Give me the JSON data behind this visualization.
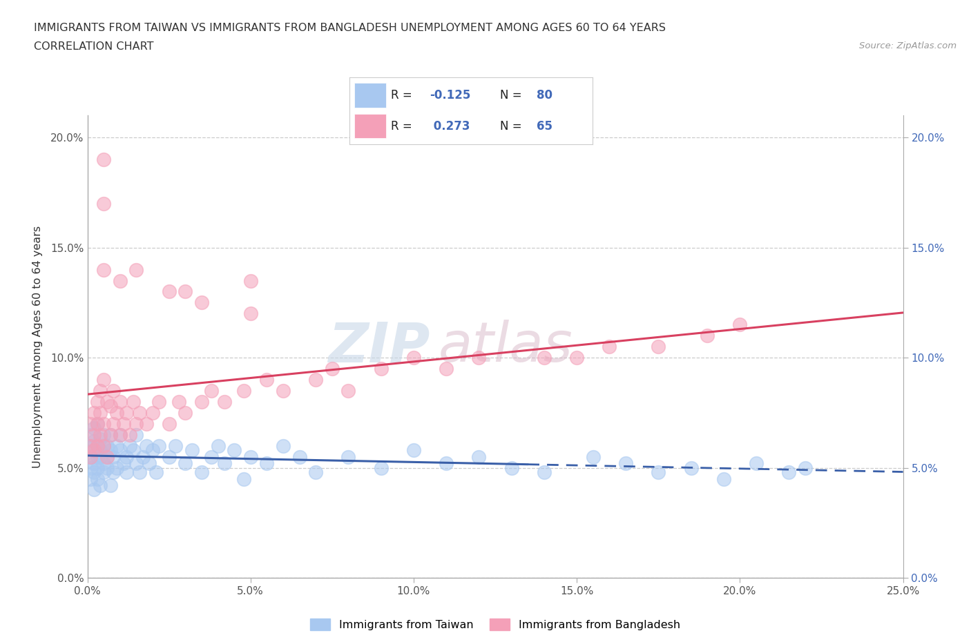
{
  "title_line1": "IMMIGRANTS FROM TAIWAN VS IMMIGRANTS FROM BANGLADESH UNEMPLOYMENT AMONG AGES 60 TO 64 YEARS",
  "title_line2": "CORRELATION CHART",
  "source": "Source: ZipAtlas.com",
  "ylabel": "Unemployment Among Ages 60 to 64 years",
  "watermark_zip": "ZIP",
  "watermark_atlas": "atlas",
  "taiwan_R": -0.125,
  "taiwan_N": 80,
  "bangladesh_R": 0.273,
  "bangladesh_N": 65,
  "taiwan_color": "#a8c8f0",
  "bangladesh_color": "#f4a0b8",
  "taiwan_line_color": "#3a5fa8",
  "bangladesh_line_color": "#d84060",
  "xlim": [
    0.0,
    0.25
  ],
  "ylim": [
    0.0,
    0.21
  ],
  "xticks": [
    0.0,
    0.05,
    0.1,
    0.15,
    0.2,
    0.25
  ],
  "xtick_labels": [
    "0.0%",
    "5.0%",
    "10.0%",
    "15.0%",
    "20.0%",
    "25.0%"
  ],
  "yticks": [
    0.0,
    0.05,
    0.1,
    0.15,
    0.2
  ],
  "ytick_labels": [
    "0.0%",
    "5.0%",
    "10.0%",
    "15.0%",
    "20.0%"
  ],
  "taiwan_x": [
    0.001,
    0.001,
    0.001,
    0.001,
    0.001,
    0.002,
    0.002,
    0.002,
    0.002,
    0.002,
    0.002,
    0.003,
    0.003,
    0.003,
    0.003,
    0.003,
    0.004,
    0.004,
    0.004,
    0.004,
    0.005,
    0.005,
    0.005,
    0.005,
    0.006,
    0.006,
    0.006,
    0.007,
    0.007,
    0.007,
    0.008,
    0.008,
    0.009,
    0.009,
    0.01,
    0.01,
    0.011,
    0.012,
    0.012,
    0.013,
    0.014,
    0.015,
    0.015,
    0.016,
    0.017,
    0.018,
    0.019,
    0.02,
    0.021,
    0.022,
    0.025,
    0.027,
    0.03,
    0.032,
    0.035,
    0.038,
    0.04,
    0.042,
    0.045,
    0.048,
    0.05,
    0.055,
    0.06,
    0.065,
    0.07,
    0.08,
    0.09,
    0.1,
    0.11,
    0.12,
    0.13,
    0.14,
    0.155,
    0.165,
    0.175,
    0.185,
    0.195,
    0.205,
    0.215,
    0.22
  ],
  "taiwan_y": [
    0.06,
    0.055,
    0.065,
    0.05,
    0.045,
    0.058,
    0.062,
    0.048,
    0.052,
    0.04,
    0.068,
    0.055,
    0.06,
    0.045,
    0.07,
    0.05,
    0.058,
    0.063,
    0.042,
    0.055,
    0.06,
    0.048,
    0.052,
    0.065,
    0.055,
    0.05,
    0.06,
    0.058,
    0.042,
    0.065,
    0.055,
    0.048,
    0.06,
    0.05,
    0.058,
    0.065,
    0.052,
    0.055,
    0.048,
    0.06,
    0.058,
    0.052,
    0.065,
    0.048,
    0.055,
    0.06,
    0.052,
    0.058,
    0.048,
    0.06,
    0.055,
    0.06,
    0.052,
    0.058,
    0.048,
    0.055,
    0.06,
    0.052,
    0.058,
    0.045,
    0.055,
    0.052,
    0.06,
    0.055,
    0.048,
    0.055,
    0.05,
    0.058,
    0.052,
    0.055,
    0.05,
    0.048,
    0.055,
    0.052,
    0.048,
    0.05,
    0.045,
    0.052,
    0.048,
    0.05
  ],
  "bangladesh_x": [
    0.001,
    0.001,
    0.001,
    0.002,
    0.002,
    0.002,
    0.003,
    0.003,
    0.003,
    0.004,
    0.004,
    0.004,
    0.005,
    0.005,
    0.005,
    0.006,
    0.006,
    0.007,
    0.007,
    0.008,
    0.008,
    0.009,
    0.01,
    0.01,
    0.011,
    0.012,
    0.013,
    0.014,
    0.015,
    0.016,
    0.018,
    0.02,
    0.022,
    0.025,
    0.028,
    0.03,
    0.035,
    0.038,
    0.042,
    0.048,
    0.055,
    0.06,
    0.07,
    0.075,
    0.08,
    0.09,
    0.1,
    0.11,
    0.12,
    0.14,
    0.15,
    0.16,
    0.175,
    0.19,
    0.2,
    0.005,
    0.01,
    0.015,
    0.025,
    0.035,
    0.05,
    0.005,
    0.005,
    0.03,
    0.05
  ],
  "bangladesh_y": [
    0.06,
    0.055,
    0.07,
    0.065,
    0.058,
    0.075,
    0.06,
    0.07,
    0.08,
    0.065,
    0.075,
    0.085,
    0.06,
    0.07,
    0.09,
    0.055,
    0.08,
    0.065,
    0.078,
    0.07,
    0.085,
    0.075,
    0.065,
    0.08,
    0.07,
    0.075,
    0.065,
    0.08,
    0.07,
    0.075,
    0.07,
    0.075,
    0.08,
    0.07,
    0.08,
    0.075,
    0.08,
    0.085,
    0.08,
    0.085,
    0.09,
    0.085,
    0.09,
    0.095,
    0.085,
    0.095,
    0.1,
    0.095,
    0.1,
    0.1,
    0.1,
    0.105,
    0.105,
    0.11,
    0.115,
    0.14,
    0.135,
    0.14,
    0.13,
    0.125,
    0.135,
    0.17,
    0.19,
    0.13,
    0.12
  ]
}
